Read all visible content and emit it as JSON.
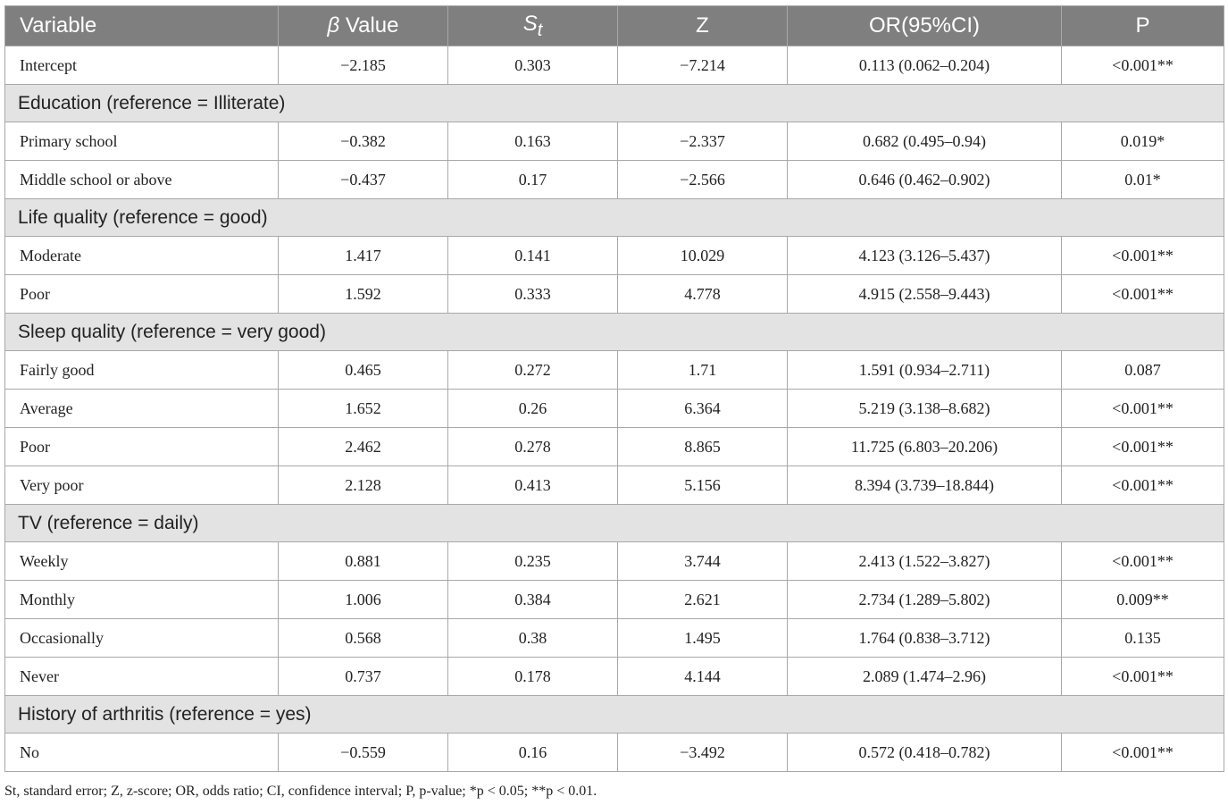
{
  "headers": {
    "variable": "Variable",
    "beta_symbol": "β",
    "beta_label": "Value",
    "st_base": "S",
    "st_sub": "t",
    "z": "Z",
    "or": "OR(95%CI)",
    "p": "P"
  },
  "rows": [
    {
      "type": "data",
      "cells": [
        "Intercept",
        "−2.185",
        "0.303",
        "−7.214",
        "0.113 (0.062–0.204)",
        "<0.001**"
      ]
    },
    {
      "type": "group",
      "label": "Education (reference = Illiterate)"
    },
    {
      "type": "data",
      "cells": [
        "Primary school",
        "−0.382",
        "0.163",
        "−2.337",
        "0.682 (0.495–0.94)",
        "0.019*"
      ]
    },
    {
      "type": "data",
      "cells": [
        "Middle school or above",
        "−0.437",
        "0.17",
        "−2.566",
        "0.646 (0.462–0.902)",
        "0.01*"
      ]
    },
    {
      "type": "group",
      "label": "Life quality (reference = good)"
    },
    {
      "type": "data",
      "cells": [
        "Moderate",
        "1.417",
        "0.141",
        "10.029",
        "4.123 (3.126–5.437)",
        "<0.001**"
      ]
    },
    {
      "type": "data",
      "cells": [
        "Poor",
        "1.592",
        "0.333",
        "4.778",
        "4.915 (2.558–9.443)",
        "<0.001**"
      ]
    },
    {
      "type": "group",
      "label": "Sleep quality (reference = very good)"
    },
    {
      "type": "data",
      "cells": [
        "Fairly good",
        "0.465",
        "0.272",
        "1.71",
        "1.591 (0.934–2.711)",
        "0.087"
      ]
    },
    {
      "type": "data",
      "cells": [
        "Average",
        "1.652",
        "0.26",
        "6.364",
        "5.219 (3.138–8.682)",
        "<0.001**"
      ]
    },
    {
      "type": "data",
      "cells": [
        "Poor",
        "2.462",
        "0.278",
        "8.865",
        "11.725 (6.803–20.206)",
        "<0.001**"
      ]
    },
    {
      "type": "data",
      "cells": [
        "Very poor",
        "2.128",
        "0.413",
        "5.156",
        "8.394 (3.739–18.844)",
        "<0.001**"
      ]
    },
    {
      "type": "group",
      "label": "TV (reference = daily)"
    },
    {
      "type": "data",
      "cells": [
        "Weekly",
        "0.881",
        "0.235",
        "3.744",
        "2.413 (1.522–3.827)",
        "<0.001**"
      ]
    },
    {
      "type": "data",
      "cells": [
        "Monthly",
        "1.006",
        "0.384",
        "2.621",
        "2.734 (1.289–5.802)",
        "0.009**"
      ]
    },
    {
      "type": "data",
      "cells": [
        "Occasionally",
        "0.568",
        "0.38",
        "1.495",
        "1.764 (0.838–3.712)",
        "0.135"
      ]
    },
    {
      "type": "data",
      "cells": [
        "Never",
        "0.737",
        "0.178",
        "4.144",
        "2.089 (1.474–2.96)",
        "<0.001**"
      ]
    },
    {
      "type": "group",
      "label": "History of arthritis (reference = yes)"
    },
    {
      "type": "data",
      "cells": [
        "No",
        "−0.559",
        "0.16",
        "−3.492",
        "0.572 (0.418–0.782)",
        "<0.001**"
      ]
    }
  ],
  "footnote": "St, standard error; Z, z-score; OR, odds ratio; CI, confidence interval; P, p-value; *p < 0.05; **p < 0.01.",
  "colors": {
    "header_bg": "#7f7f7f",
    "header_text": "#ffffff",
    "group_bg": "#e3e3e3",
    "border": "#a8a8a8"
  }
}
